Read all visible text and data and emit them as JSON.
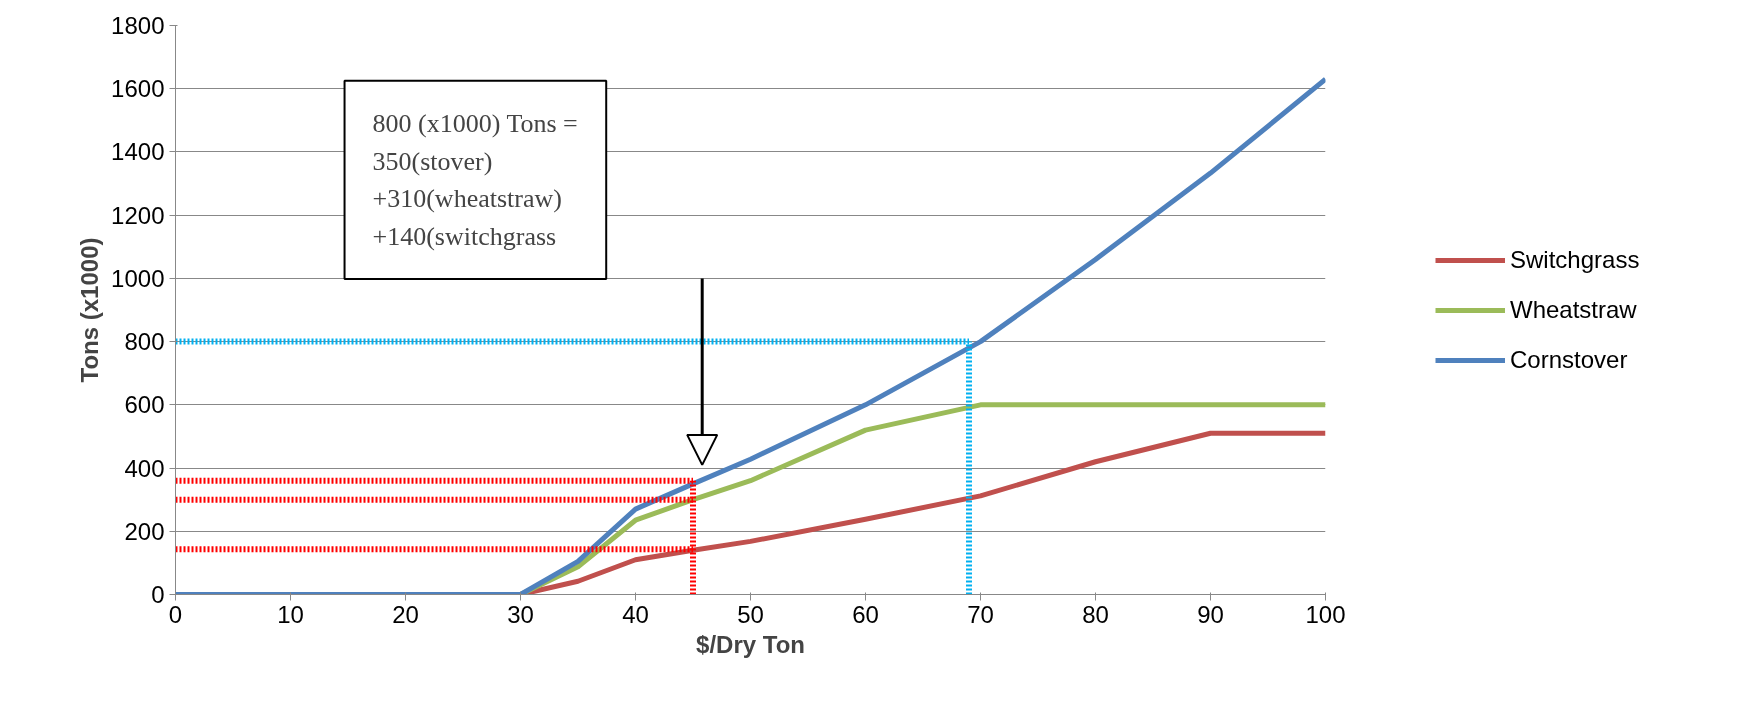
{
  "chart_data": {
    "type": "line",
    "xlabel": "$/Dry Ton",
    "ylabel": "Tons (x1000)",
    "x": [
      0,
      10,
      20,
      30,
      35,
      40,
      45,
      50,
      60,
      70,
      80,
      90,
      100
    ],
    "xlim": [
      0,
      100
    ],
    "xticks": [
      0,
      10,
      20,
      30,
      40,
      50,
      60,
      70,
      80,
      90,
      100
    ],
    "ylim": [
      0,
      1800
    ],
    "yticks": [
      0,
      200,
      400,
      600,
      800,
      1000,
      1200,
      1400,
      1600,
      1800
    ],
    "grid": "y",
    "legend": "right",
    "line_style": "solid",
    "marker": "none",
    "series": [
      {
        "name": "Switchgrass",
        "color": "#c0504d",
        "x": [
          30,
          35,
          40,
          45,
          50,
          60,
          70,
          80,
          90,
          100
        ],
        "values": [
          0,
          42,
          110,
          140,
          168,
          238,
          312,
          420,
          510,
          510
        ]
      },
      {
        "name": "Wheatstraw",
        "color": "#9bbb59",
        "x": [
          30,
          35,
          40,
          45,
          50,
          60,
          70,
          80,
          90,
          100
        ],
        "values": [
          0,
          88,
          235,
          300,
          360,
          520,
          600,
          600,
          600,
          600
        ]
      },
      {
        "name": "Cornstover",
        "color": "#4f81bd",
        "values": [
          0,
          0,
          0,
          0,
          105,
          270,
          350,
          428,
          600,
          800,
          1060,
          1333,
          1630
        ]
      },
      {
        "type": "line",
        "color": "#ff0000",
        "line_style": "dotted",
        "x": [
          0,
          45
        ],
        "values": [
          360,
          360
        ]
      },
      {
        "type": "line",
        "color": "#ff0000",
        "line_style": "dotted",
        "x": [
          0,
          45
        ],
        "values": [
          300,
          300
        ]
      },
      {
        "type": "line",
        "color": "#ff0000",
        "line_style": "dotted",
        "x": [
          0,
          45
        ],
        "values": [
          143,
          143
        ]
      },
      {
        "type": "line",
        "color": "#ff0000",
        "line_style": "dotted",
        "x": [
          45,
          45
        ],
        "values": [
          0,
          360
        ]
      },
      {
        "type": "line",
        "color": "#00b0f0",
        "line_style": "dotted",
        "x": [
          0,
          69
        ],
        "values": [
          800,
          800
        ]
      },
      {
        "type": "line",
        "color": "#00b0f0",
        "line_style": "dotted",
        "x": [
          69,
          69
        ],
        "values": [
          0,
          800
        ]
      }
    ],
    "annotations": [
      "800 (x1000) Tons =\n350(stover)\n+310(wheatstraw)\n+140(switchgrass"
    ]
  }
}
